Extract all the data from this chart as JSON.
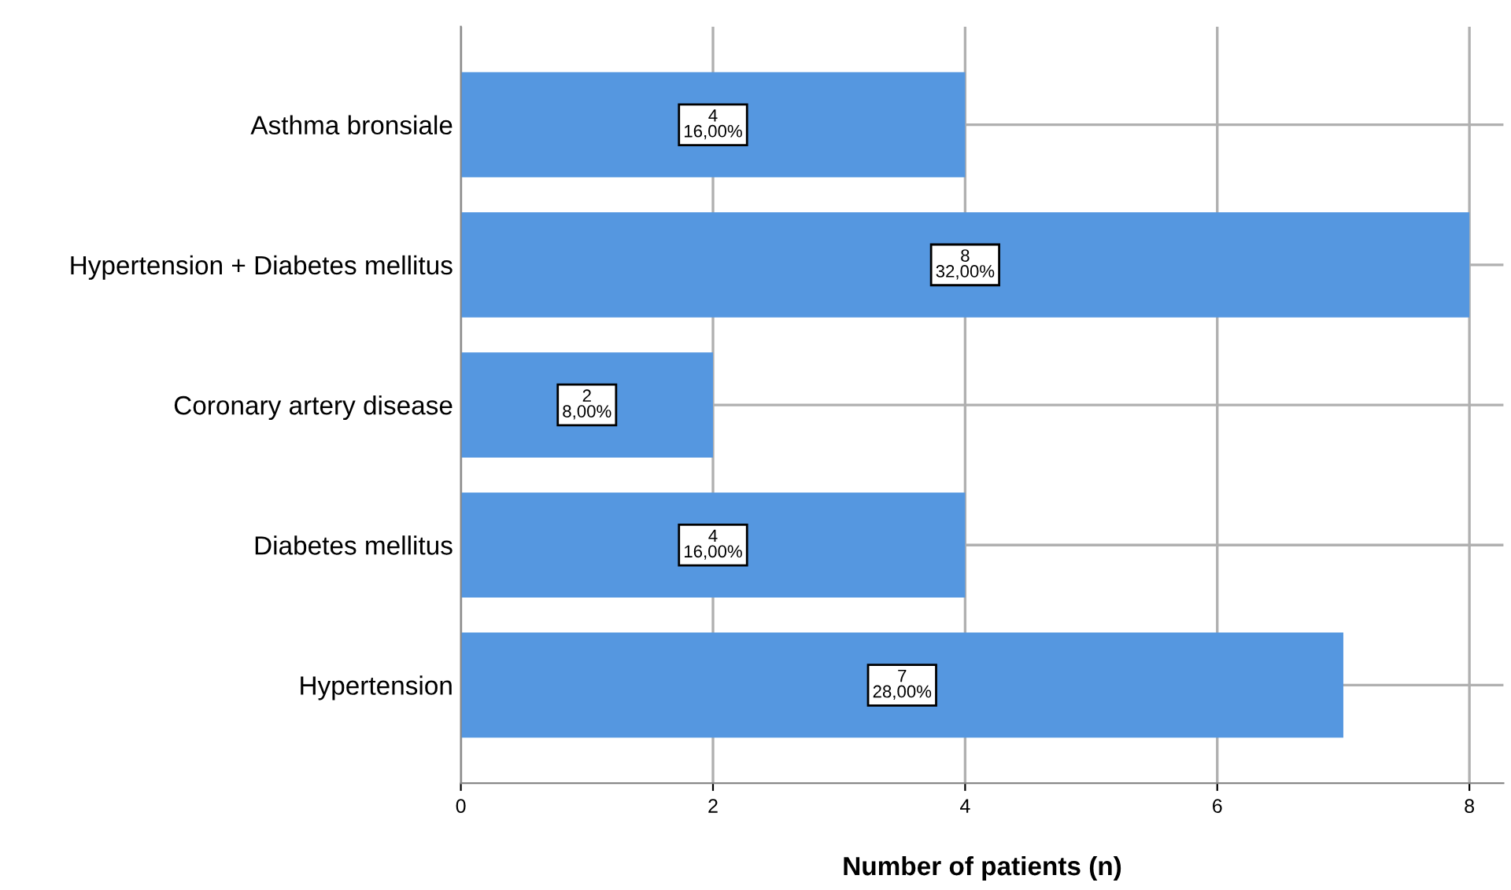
{
  "chart_data": {
    "type": "bar",
    "orientation": "horizontal",
    "xlabel": "Number of patients (n)",
    "categories": [
      "Asthma bronsiale",
      "Hypertension + Diabetes mellitus",
      "Coronary artery disease",
      "Diabetes mellitus",
      "Hypertension"
    ],
    "values": [
      4,
      8,
      2,
      4,
      7
    ],
    "value_labels": [
      "4\n16,00%",
      "8\n32,00%",
      "2\n8,00%",
      "4\n16,00%",
      "7\n28,00%"
    ],
    "color": "#5597e0",
    "xlim": [
      0,
      8.27
    ],
    "xticks": [
      0,
      2,
      4,
      6,
      8
    ],
    "grid": true,
    "legend": false
  }
}
